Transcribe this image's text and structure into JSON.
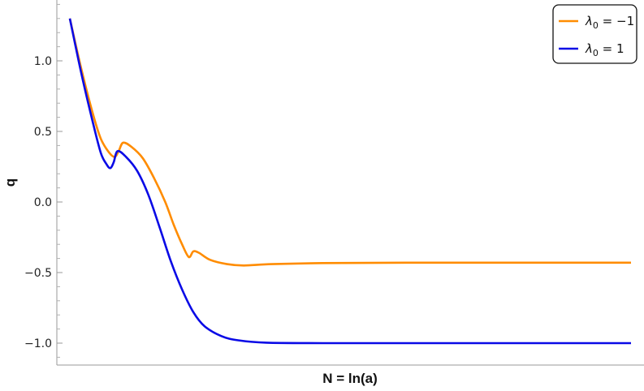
{
  "chart_data": {
    "type": "line",
    "title": "",
    "xlabel": "N = ln(a)",
    "ylabel": "q",
    "ylim": [
      -1.12,
      1.42
    ],
    "x_ticks_labeled": false,
    "y_ticks": [
      {
        "value": 1.0,
        "label": "1.0"
      },
      {
        "value": 0.5,
        "label": "0.5"
      },
      {
        "value": 0.0,
        "label": "0.0"
      },
      {
        "value": -0.5,
        "label": "−0.5"
      },
      {
        "value": -1.0,
        "label": "−1.0"
      }
    ],
    "grid": false,
    "legend": {
      "position": "top-right"
    },
    "series": [
      {
        "name": "λ0 = −1",
        "legend_main": "λ",
        "legend_sub": "0",
        "legend_value": " = −1",
        "color": "#ff8c00",
        "points": [
          [
            0.0,
            1.3
          ],
          [
            0.02,
            0.95
          ],
          [
            0.04,
            0.64
          ],
          [
            0.055,
            0.45
          ],
          [
            0.07,
            0.35
          ],
          [
            0.08,
            0.32
          ],
          [
            0.087,
            0.36
          ],
          [
            0.095,
            0.42
          ],
          [
            0.11,
            0.39
          ],
          [
            0.13,
            0.31
          ],
          [
            0.15,
            0.17
          ],
          [
            0.17,
            0.0
          ],
          [
            0.185,
            -0.16
          ],
          [
            0.2,
            -0.3
          ],
          [
            0.212,
            -0.39
          ],
          [
            0.22,
            -0.35
          ],
          [
            0.23,
            -0.36
          ],
          [
            0.25,
            -0.41
          ],
          [
            0.28,
            -0.44
          ],
          [
            0.31,
            -0.45
          ],
          [
            0.36,
            -0.44
          ],
          [
            0.45,
            -0.433
          ],
          [
            0.6,
            -0.43
          ],
          [
            0.8,
            -0.43
          ],
          [
            1.0,
            -0.43
          ]
        ]
      },
      {
        "name": "λ0 = 1",
        "legend_main": "λ",
        "legend_sub": "0",
        "legend_value": " = 1",
        "color": "#0a0ae6",
        "points": [
          [
            0.0,
            1.3
          ],
          [
            0.02,
            0.92
          ],
          [
            0.04,
            0.58
          ],
          [
            0.055,
            0.35
          ],
          [
            0.065,
            0.27
          ],
          [
            0.072,
            0.24
          ],
          [
            0.078,
            0.28
          ],
          [
            0.085,
            0.36
          ],
          [
            0.1,
            0.32
          ],
          [
            0.12,
            0.22
          ],
          [
            0.14,
            0.05
          ],
          [
            0.16,
            -0.18
          ],
          [
            0.18,
            -0.42
          ],
          [
            0.2,
            -0.62
          ],
          [
            0.22,
            -0.78
          ],
          [
            0.24,
            -0.88
          ],
          [
            0.27,
            -0.95
          ],
          [
            0.3,
            -0.98
          ],
          [
            0.35,
            -0.997
          ],
          [
            0.45,
            -1.0
          ],
          [
            0.6,
            -1.0
          ],
          [
            0.8,
            -1.0
          ],
          [
            1.0,
            -1.0
          ]
        ]
      }
    ]
  }
}
